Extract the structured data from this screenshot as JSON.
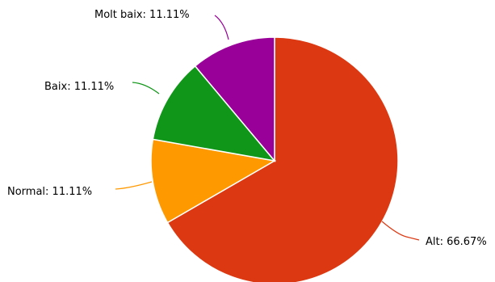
{
  "chart_data": {
    "type": "pie",
    "slices": [
      {
        "name": "Alt",
        "value": 66.67,
        "label": "Alt: 66.67%",
        "color": "#dc3912"
      },
      {
        "name": "Normal",
        "value": 11.11,
        "label": "Normal: 11.11%",
        "color": "#ff9900"
      },
      {
        "name": "Baix",
        "value": 11.11,
        "label": "Baix: 11.11%",
        "color": "#109618"
      },
      {
        "name": "Molt baix",
        "value": 11.11,
        "label": "Molt baix: 11.11%",
        "color": "#990099"
      }
    ],
    "start_angle_deg": 0,
    "direction": "clockwise"
  }
}
